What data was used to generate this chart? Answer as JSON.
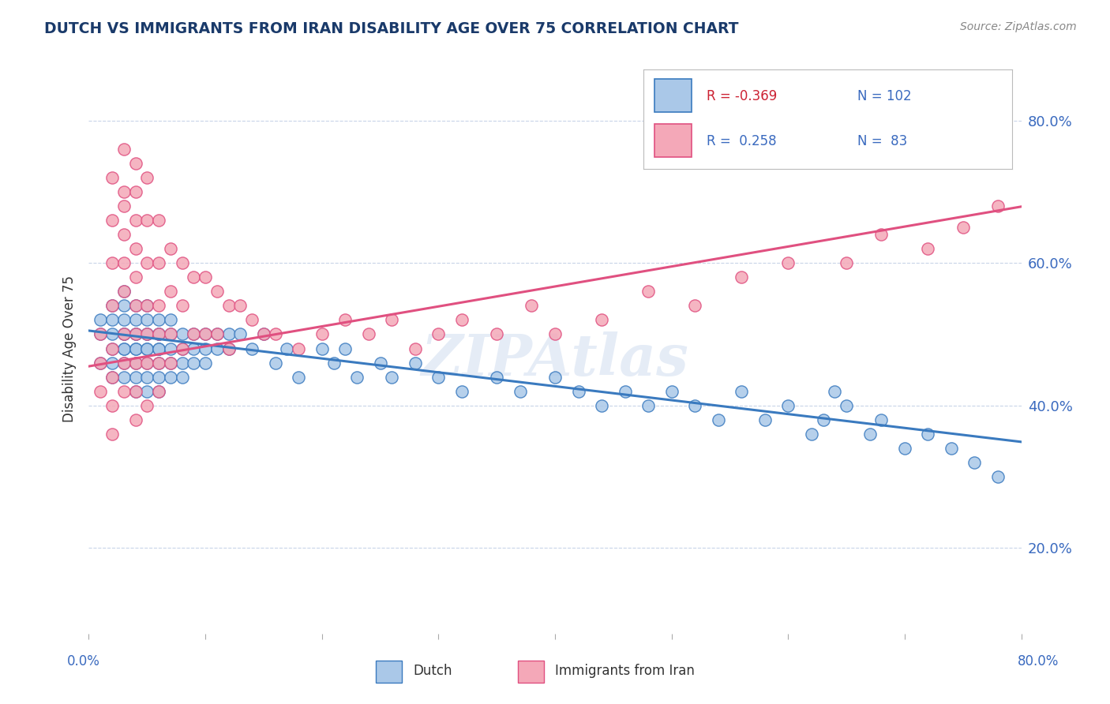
{
  "title": "DUTCH VS IMMIGRANTS FROM IRAN DISABILITY AGE OVER 75 CORRELATION CHART",
  "source": "Source: ZipAtlas.com",
  "ylabel": "Disability Age Over 75",
  "right_ytick_values": [
    0.2,
    0.4,
    0.6,
    0.8
  ],
  "legend_dutch_R": "-0.369",
  "legend_dutch_N": "102",
  "legend_iran_R": "0.258",
  "legend_iran_N": "83",
  "dutch_color": "#aac8e8",
  "iran_color": "#f4a8b8",
  "dutch_line_color": "#3a7abf",
  "iran_line_color": "#e05080",
  "background_color": "#ffffff",
  "grid_color": "#c8d4e8",
  "title_color": "#1a3a6a",
  "axis_label_color": "#3a6abf",
  "watermark": "ZIPAtlas",
  "xlim": [
    0.0,
    0.8
  ],
  "ylim": [
    0.08,
    0.88
  ],
  "dutch_trend": [
    -0.195,
    0.505
  ],
  "iran_trend": [
    0.28,
    0.455
  ],
  "dutch_scatter_x": [
    0.01,
    0.01,
    0.01,
    0.02,
    0.02,
    0.02,
    0.02,
    0.02,
    0.02,
    0.03,
    0.03,
    0.03,
    0.03,
    0.03,
    0.03,
    0.03,
    0.03,
    0.03,
    0.04,
    0.04,
    0.04,
    0.04,
    0.04,
    0.04,
    0.04,
    0.04,
    0.04,
    0.05,
    0.05,
    0.05,
    0.05,
    0.05,
    0.05,
    0.05,
    0.05,
    0.05,
    0.06,
    0.06,
    0.06,
    0.06,
    0.06,
    0.06,
    0.06,
    0.06,
    0.07,
    0.07,
    0.07,
    0.07,
    0.07,
    0.08,
    0.08,
    0.08,
    0.08,
    0.09,
    0.09,
    0.09,
    0.1,
    0.1,
    0.1,
    0.11,
    0.11,
    0.12,
    0.12,
    0.13,
    0.14,
    0.15,
    0.16,
    0.17,
    0.18,
    0.2,
    0.21,
    0.22,
    0.23,
    0.25,
    0.26,
    0.28,
    0.3,
    0.32,
    0.35,
    0.37,
    0.4,
    0.42,
    0.44,
    0.46,
    0.48,
    0.5,
    0.52,
    0.54,
    0.56,
    0.58,
    0.6,
    0.62,
    0.63,
    0.64,
    0.65,
    0.67,
    0.68,
    0.7,
    0.72,
    0.74,
    0.76,
    0.78
  ],
  "dutch_scatter_y": [
    0.5,
    0.46,
    0.52,
    0.5,
    0.48,
    0.52,
    0.46,
    0.54,
    0.44,
    0.5,
    0.48,
    0.52,
    0.46,
    0.54,
    0.44,
    0.5,
    0.48,
    0.56,
    0.5,
    0.48,
    0.52,
    0.46,
    0.54,
    0.44,
    0.5,
    0.48,
    0.42,
    0.5,
    0.48,
    0.52,
    0.46,
    0.44,
    0.5,
    0.48,
    0.54,
    0.42,
    0.5,
    0.48,
    0.52,
    0.46,
    0.44,
    0.5,
    0.48,
    0.42,
    0.5,
    0.48,
    0.52,
    0.46,
    0.44,
    0.5,
    0.48,
    0.46,
    0.44,
    0.5,
    0.48,
    0.46,
    0.5,
    0.48,
    0.46,
    0.5,
    0.48,
    0.5,
    0.48,
    0.5,
    0.48,
    0.5,
    0.46,
    0.48,
    0.44,
    0.48,
    0.46,
    0.48,
    0.44,
    0.46,
    0.44,
    0.46,
    0.44,
    0.42,
    0.44,
    0.42,
    0.44,
    0.42,
    0.4,
    0.42,
    0.4,
    0.42,
    0.4,
    0.38,
    0.42,
    0.38,
    0.4,
    0.36,
    0.38,
    0.42,
    0.4,
    0.36,
    0.38,
    0.34,
    0.36,
    0.34,
    0.32,
    0.3
  ],
  "iran_scatter_x": [
    0.01,
    0.01,
    0.01,
    0.02,
    0.02,
    0.02,
    0.02,
    0.02,
    0.02,
    0.02,
    0.02,
    0.03,
    0.03,
    0.03,
    0.03,
    0.03,
    0.03,
    0.03,
    0.03,
    0.03,
    0.04,
    0.04,
    0.04,
    0.04,
    0.04,
    0.04,
    0.04,
    0.04,
    0.04,
    0.04,
    0.05,
    0.05,
    0.05,
    0.05,
    0.05,
    0.05,
    0.05,
    0.06,
    0.06,
    0.06,
    0.06,
    0.06,
    0.06,
    0.07,
    0.07,
    0.07,
    0.07,
    0.08,
    0.08,
    0.08,
    0.09,
    0.09,
    0.1,
    0.1,
    0.11,
    0.11,
    0.12,
    0.12,
    0.13,
    0.14,
    0.15,
    0.16,
    0.18,
    0.2,
    0.22,
    0.24,
    0.26,
    0.28,
    0.3,
    0.32,
    0.35,
    0.38,
    0.4,
    0.44,
    0.48,
    0.52,
    0.56,
    0.6,
    0.65,
    0.68,
    0.72,
    0.75,
    0.78
  ],
  "iran_scatter_y": [
    0.5,
    0.46,
    0.42,
    0.72,
    0.66,
    0.6,
    0.54,
    0.48,
    0.44,
    0.4,
    0.36,
    0.76,
    0.7,
    0.68,
    0.64,
    0.6,
    0.56,
    0.5,
    0.46,
    0.42,
    0.74,
    0.7,
    0.66,
    0.62,
    0.58,
    0.54,
    0.5,
    0.46,
    0.42,
    0.38,
    0.72,
    0.66,
    0.6,
    0.54,
    0.5,
    0.46,
    0.4,
    0.66,
    0.6,
    0.54,
    0.5,
    0.46,
    0.42,
    0.62,
    0.56,
    0.5,
    0.46,
    0.6,
    0.54,
    0.48,
    0.58,
    0.5,
    0.58,
    0.5,
    0.56,
    0.5,
    0.54,
    0.48,
    0.54,
    0.52,
    0.5,
    0.5,
    0.48,
    0.5,
    0.52,
    0.5,
    0.52,
    0.48,
    0.5,
    0.52,
    0.5,
    0.54,
    0.5,
    0.52,
    0.56,
    0.54,
    0.58,
    0.6,
    0.6,
    0.64,
    0.62,
    0.65,
    0.68
  ]
}
